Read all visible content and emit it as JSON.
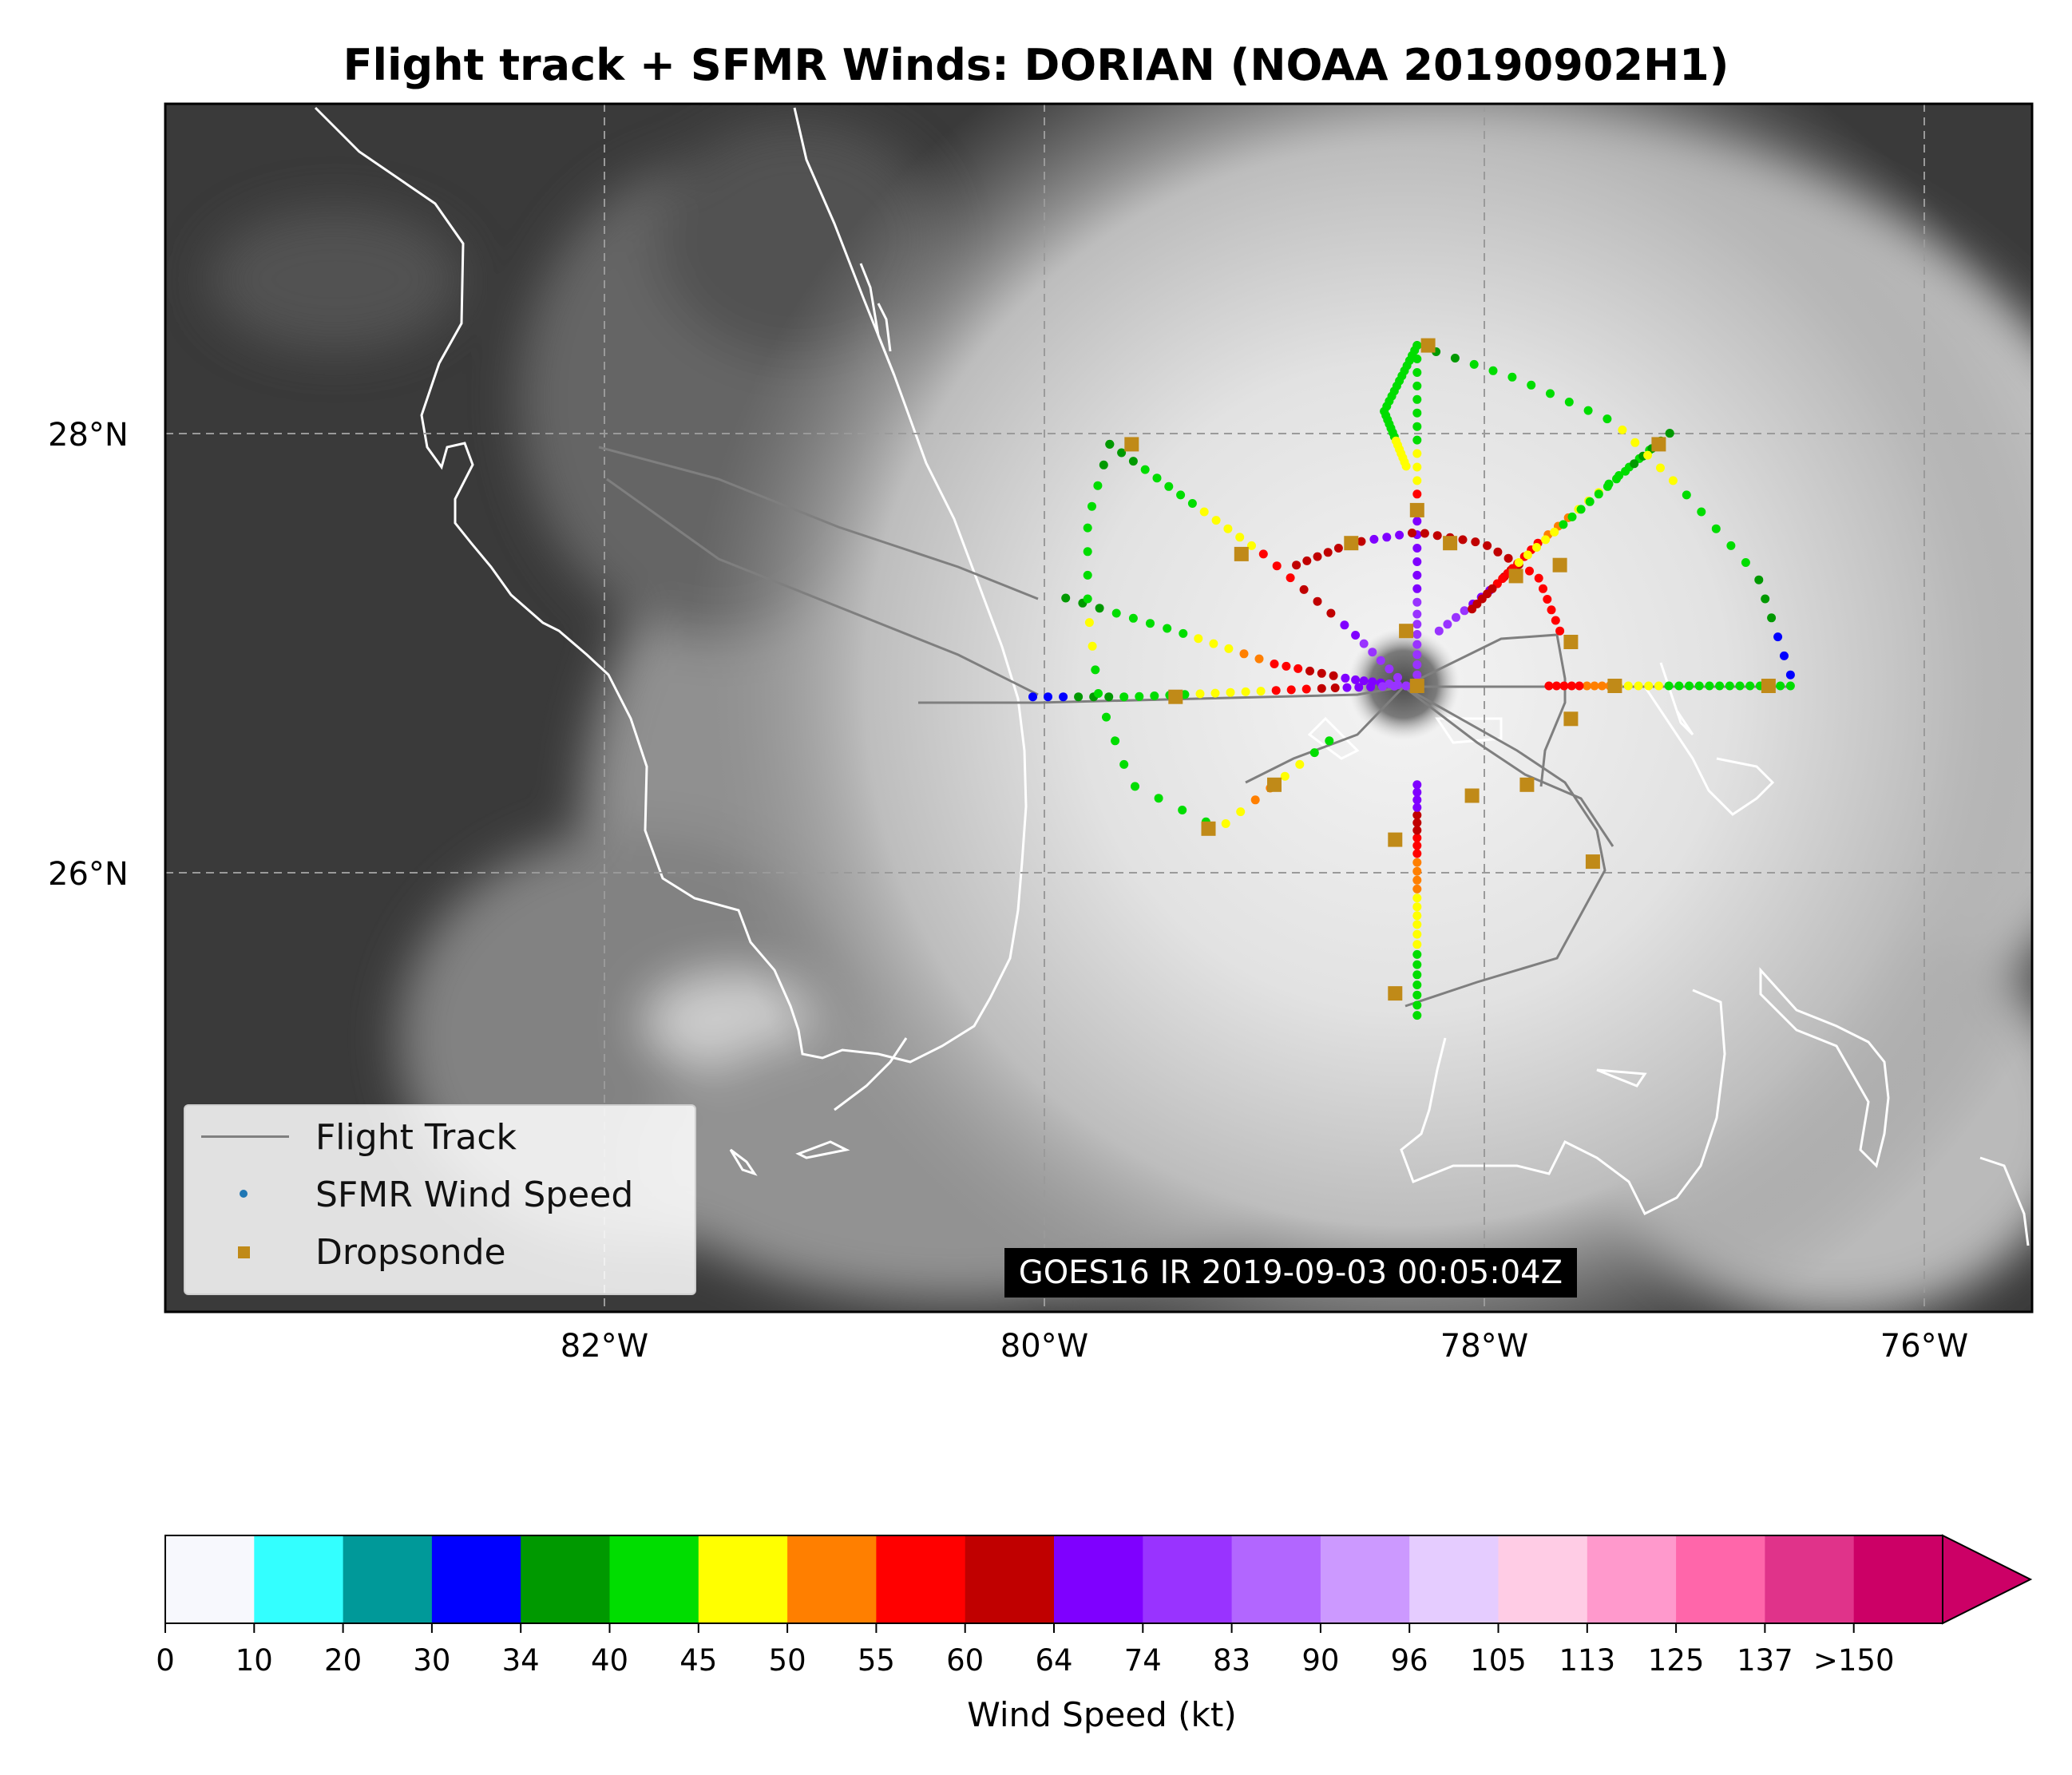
{
  "title": "Flight track + SFMR Winds: DORIAN (NOAA 20190902H1)",
  "map": {
    "lon_range": [
      -84,
      -75.5
    ],
    "lat_range": [
      24,
      29.5
    ],
    "lon_ticks": [
      {
        "lon": -82,
        "label": "82°W"
      },
      {
        "lon": -80,
        "label": "80°W"
      },
      {
        "lon": -78,
        "label": "78°W"
      },
      {
        "lon": -76,
        "label": "76°W"
      }
    ],
    "lat_ticks": [
      {
        "lat": 28,
        "label": "28°N"
      },
      {
        "lat": 26,
        "label": "26°N"
      }
    ],
    "grid": true,
    "satellite_label": "GOES16 IR 2019-09-03 00:05:04Z",
    "storm_center": {
      "lon": -78.3,
      "lat": 26.85
    }
  },
  "legend": {
    "position": "lower-left",
    "flight_track": "Flight Track",
    "sfmr": "SFMR Wind Speed",
    "dropsonde": "Dropsonde"
  },
  "colorbar": {
    "label": "Wind Speed (kt)",
    "tick_labels": [
      "0",
      "10",
      "20",
      "30",
      "34",
      "40",
      "45",
      "50",
      "55",
      "60",
      "64",
      "74",
      "83",
      "90",
      "96",
      "105",
      "113",
      "125",
      "137",
      ">150"
    ],
    "colors": [
      "#f7f8fd",
      "#33ffff",
      "#009999",
      "#0000ff",
      "#009900",
      "#00dd00",
      "#ffff00",
      "#ff7f00",
      "#ff0000",
      "#c00000",
      "#7f00ff",
      "#9933ff",
      "#b266ff",
      "#cc99ff",
      "#e5ccff",
      "#ffcce5",
      "#ff99cc",
      "#ff66aa",
      "#e0338a",
      "#cc0066"
    ],
    "extend_color": "#cc0066"
  },
  "chart_data": {
    "type": "scatter",
    "units": "kt",
    "sfmr_legs": [
      {
        "path": [
          [
            -79.9,
            27.25
          ],
          [
            -79.4,
            27.1
          ],
          [
            -78.95,
            26.95
          ],
          [
            -78.6,
            26.88
          ],
          [
            -78.35,
            26.85
          ]
        ],
        "winds": [
          38,
          42,
          44,
          48,
          52,
          58,
          62,
          66,
          72,
          75
        ]
      },
      {
        "path": [
          [
            -80.05,
            26.8
          ],
          [
            -79.6,
            26.8
          ],
          [
            -79.15,
            26.82
          ],
          [
            -78.7,
            26.84
          ],
          [
            -78.35,
            26.85
          ]
        ],
        "winds": [
          30,
          38,
          42,
          43,
          46,
          48,
          55,
          62,
          70,
          74
        ]
      },
      {
        "path": [
          [
            -79.7,
            27.95
          ],
          [
            -79.35,
            27.7
          ],
          [
            -79.0,
            27.45
          ],
          [
            -78.6,
            27.1
          ],
          [
            -78.35,
            26.85
          ]
        ],
        "winds": [
          38,
          42,
          44,
          47,
          48,
          56,
          62,
          70,
          74,
          76
        ]
      },
      {
        "path": [
          [
            -78.3,
            28.4
          ],
          [
            -78.3,
            28.0
          ],
          [
            -78.3,
            27.6
          ],
          [
            -78.3,
            27.2
          ],
          [
            -78.3,
            26.9
          ]
        ],
        "winds": [
          40,
          42,
          44,
          48,
          58,
          70,
          72,
          76,
          78,
          80
        ]
      },
      {
        "path": [
          [
            -78.3,
            25.35
          ],
          [
            -78.3,
            25.75
          ],
          [
            -78.3,
            26.1
          ],
          [
            -78.3,
            26.4
          ]
        ],
        "winds": [
          40,
          43,
          46,
          48,
          52,
          56,
          62,
          70
        ]
      },
      {
        "path": [
          [
            -76.6,
            26.85
          ],
          [
            -77.0,
            26.85
          ],
          [
            -77.4,
            26.85
          ],
          [
            -77.7,
            26.85
          ]
        ],
        "winds": [
          40,
          42,
          44,
          46,
          50,
          58
        ]
      },
      {
        "path": [
          [
            -78.85,
            27.4
          ],
          [
            -78.6,
            27.5
          ],
          [
            -78.3,
            27.55
          ],
          [
            -78.0,
            27.5
          ],
          [
            -77.75,
            27.35
          ],
          [
            -77.65,
            27.1
          ]
        ],
        "winds": [
          60,
          62,
          64,
          62,
          60,
          62,
          58,
          55
        ]
      },
      {
        "path": [
          [
            -77.15,
            28.0
          ],
          [
            -77.45,
            27.75
          ],
          [
            -77.75,
            27.5
          ],
          [
            -77.95,
            27.3
          ],
          [
            -78.2,
            27.1
          ]
        ],
        "winds": [
          40,
          42,
          46,
          52,
          58,
          62,
          68,
          74
        ]
      },
      {
        "path": [
          [
            -77.15,
            28.0
          ],
          [
            -77.5,
            27.7
          ],
          [
            -77.85,
            27.4
          ],
          [
            -78.05,
            27.2
          ]
        ],
        "winds": [
          38,
          42,
          44,
          48,
          55,
          60
        ]
      },
      {
        "path": [
          [
            -78.3,
            28.4
          ],
          [
            -77.85,
            28.25
          ],
          [
            -77.4,
            28.05
          ],
          [
            -77.1,
            27.75
          ],
          [
            -76.75,
            27.35
          ],
          [
            -76.6,
            26.9
          ]
        ],
        "winds": [
          38,
          42,
          44,
          42,
          46,
          48,
          44,
          40,
          36,
          32
        ]
      },
      {
        "path": [
          [
            -78.3,
            28.4
          ],
          [
            -78.45,
            28.1
          ],
          [
            -78.35,
            27.85
          ]
        ],
        "winds": [
          40,
          42,
          44,
          46
        ]
      },
      {
        "path": [
          [
            -79.7,
            27.95
          ],
          [
            -79.8,
            27.6
          ],
          [
            -79.8,
            27.2
          ],
          [
            -79.75,
            26.8
          ],
          [
            -79.6,
            26.4
          ],
          [
            -79.2,
            26.2
          ],
          [
            -78.95,
            26.4
          ],
          [
            -78.7,
            26.6
          ]
        ],
        "winds": [
          38,
          40,
          42,
          44,
          46,
          44,
          42,
          42,
          40,
          42,
          46,
          50,
          48,
          44
        ]
      }
    ],
    "dropsondes": [
      [
        -79.6,
        27.95
      ],
      [
        -79.1,
        27.45
      ],
      [
        -78.6,
        27.5
      ],
      [
        -78.3,
        27.65
      ],
      [
        -78.15,
        27.5
      ],
      [
        -77.85,
        27.35
      ],
      [
        -77.65,
        27.4
      ],
      [
        -77.2,
        27.95
      ],
      [
        -78.25,
        28.4
      ],
      [
        -78.35,
        27.1
      ],
      [
        -78.3,
        26.85
      ],
      [
        -79.4,
        26.8
      ],
      [
        -77.6,
        27.05
      ],
      [
        -77.4,
        26.85
      ],
      [
        -76.7,
        26.85
      ],
      [
        -77.6,
        26.7
      ],
      [
        -78.95,
        26.4
      ],
      [
        -79.25,
        26.2
      ],
      [
        -77.8,
        26.4
      ],
      [
        -78.05,
        26.35
      ],
      [
        -78.4,
        26.15
      ],
      [
        -77.5,
        26.05
      ],
      [
        -78.4,
        25.45
      ]
    ]
  }
}
